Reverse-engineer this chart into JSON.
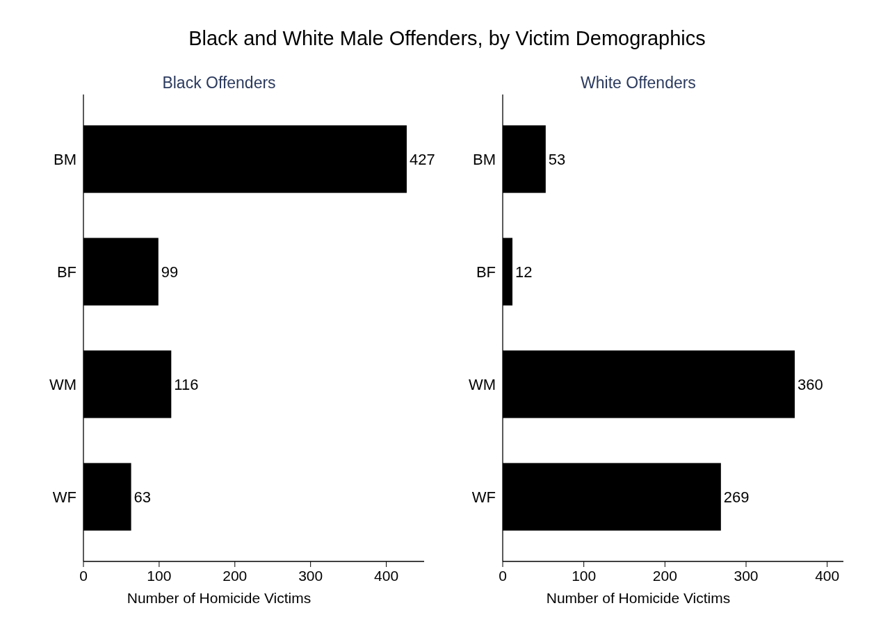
{
  "chart_data": [
    {
      "type": "bar",
      "orientation": "horizontal",
      "title": "Black and White Male Offenders, by Victim Demographics",
      "subtitle": "Black Offenders",
      "categories": [
        "BM",
        "BF",
        "WM",
        "WF"
      ],
      "values": [
        427,
        99,
        116,
        63
      ],
      "color": "#000000",
      "xlim": [
        0,
        450
      ],
      "xticks": [
        0,
        100,
        200,
        300,
        400
      ],
      "xlabel": "Number of Homicide Victims",
      "data_labels": true
    },
    {
      "type": "bar",
      "orientation": "horizontal",
      "subtitle": "White Offenders",
      "categories": [
        "BM",
        "BF",
        "WM",
        "WF"
      ],
      "values": [
        53,
        12,
        360,
        269
      ],
      "color": "#000000",
      "xlim": [
        0,
        420
      ],
      "xticks": [
        0,
        100,
        200,
        300,
        400
      ],
      "xlabel": "Number of Homicide Victims",
      "data_labels": true
    }
  ]
}
